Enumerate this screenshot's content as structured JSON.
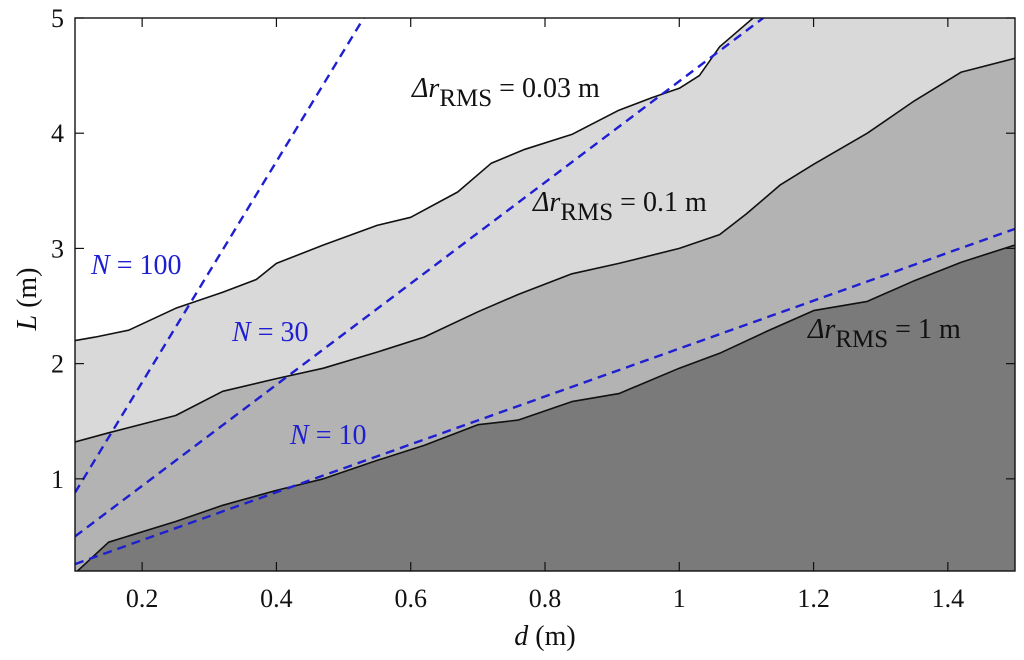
{
  "chart_data": {
    "type": "area",
    "title": "",
    "xlim": [
      0.1,
      1.5
    ],
    "ylim": [
      0.2,
      5
    ],
    "x_ticks": [
      0.2,
      0.4,
      0.6,
      0.8,
      1,
      1.2,
      1.4
    ],
    "x_tick_labels": [
      "0.2",
      "0.4",
      "0.6",
      "0.8",
      "1",
      "1.2",
      "1.4"
    ],
    "y_ticks": [
      1,
      2,
      3,
      4,
      5
    ],
    "y_tick_labels": [
      "1",
      "2",
      "3",
      "4",
      "5"
    ],
    "xlabel": {
      "var": "d",
      "unit": " (m)"
    },
    "ylabel": {
      "var": "L",
      "unit": " (m)"
    },
    "grid": false,
    "regions": [
      {
        "label": {
          "prefix": "Δr",
          "subscript": "RMS",
          "value": " = 0.03 m"
        },
        "color": "#d9d9d9",
        "boundary": [
          [
            0.1,
            2.2
          ],
          [
            0.13,
            2.23
          ],
          [
            0.18,
            2.29
          ],
          [
            0.25,
            2.48
          ],
          [
            0.32,
            2.62
          ],
          [
            0.37,
            2.73
          ],
          [
            0.4,
            2.87
          ],
          [
            0.47,
            3.03
          ],
          [
            0.55,
            3.2
          ],
          [
            0.6,
            3.27
          ],
          [
            0.67,
            3.49
          ],
          [
            0.72,
            3.74
          ],
          [
            0.77,
            3.86
          ],
          [
            0.84,
            3.99
          ],
          [
            0.91,
            4.2
          ],
          [
            0.96,
            4.31
          ],
          [
            1.0,
            4.39
          ],
          [
            1.03,
            4.5
          ],
          [
            1.06,
            4.75
          ],
          [
            1.11,
            5.0
          ]
        ]
      },
      {
        "label": {
          "prefix": "Δr",
          "subscript": "RMS",
          "value": " = 0.1 m"
        },
        "color": "#b3b3b3",
        "boundary": [
          [
            0.1,
            1.32
          ],
          [
            0.15,
            1.4
          ],
          [
            0.25,
            1.55
          ],
          [
            0.32,
            1.76
          ],
          [
            0.4,
            1.87
          ],
          [
            0.47,
            1.96
          ],
          [
            0.55,
            2.1
          ],
          [
            0.62,
            2.23
          ],
          [
            0.7,
            2.45
          ],
          [
            0.76,
            2.6
          ],
          [
            0.84,
            2.78
          ],
          [
            0.91,
            2.87
          ],
          [
            1.0,
            3.0
          ],
          [
            1.06,
            3.12
          ],
          [
            1.1,
            3.3
          ],
          [
            1.15,
            3.55
          ],
          [
            1.2,
            3.73
          ],
          [
            1.28,
            4.0
          ],
          [
            1.35,
            4.28
          ],
          [
            1.42,
            4.53
          ],
          [
            1.5,
            4.65
          ]
        ]
      },
      {
        "label": {
          "prefix": "Δr",
          "subscript": "RMS",
          "value": " = 1 m"
        },
        "color": "#7a7a7a",
        "boundary": [
          [
            0.1,
            0.18
          ],
          [
            0.15,
            0.45
          ],
          [
            0.25,
            0.63
          ],
          [
            0.32,
            0.77
          ],
          [
            0.4,
            0.9
          ],
          [
            0.47,
            1.0
          ],
          [
            0.55,
            1.16
          ],
          [
            0.62,
            1.29
          ],
          [
            0.7,
            1.47
          ],
          [
            0.76,
            1.51
          ],
          [
            0.84,
            1.67
          ],
          [
            0.91,
            1.74
          ],
          [
            1.0,
            1.96
          ],
          [
            1.06,
            2.09
          ],
          [
            1.13,
            2.28
          ],
          [
            1.2,
            2.46
          ],
          [
            1.28,
            2.54
          ],
          [
            1.35,
            2.72
          ],
          [
            1.42,
            2.88
          ],
          [
            1.5,
            3.03
          ]
        ]
      }
    ],
    "reference_lines": [
      {
        "label": {
          "var": "N",
          "value": " = 100"
        },
        "color": "#1f1fd2",
        "style": "dashed",
        "points": [
          [
            0.1,
            0.88
          ],
          [
            0.53,
            5.0
          ]
        ]
      },
      {
        "label": {
          "var": "N",
          "value": " = 30"
        },
        "color": "#1f1fd2",
        "style": "dashed",
        "points": [
          [
            0.1,
            0.5
          ],
          [
            1.125,
            5.0
          ]
        ]
      },
      {
        "label": {
          "var": "N",
          "value": " = 10"
        },
        "color": "#1f1fd2",
        "style": "dashed",
        "points": [
          [
            0.1,
            0.26
          ],
          [
            1.5,
            3.17
          ]
        ]
      }
    ]
  }
}
